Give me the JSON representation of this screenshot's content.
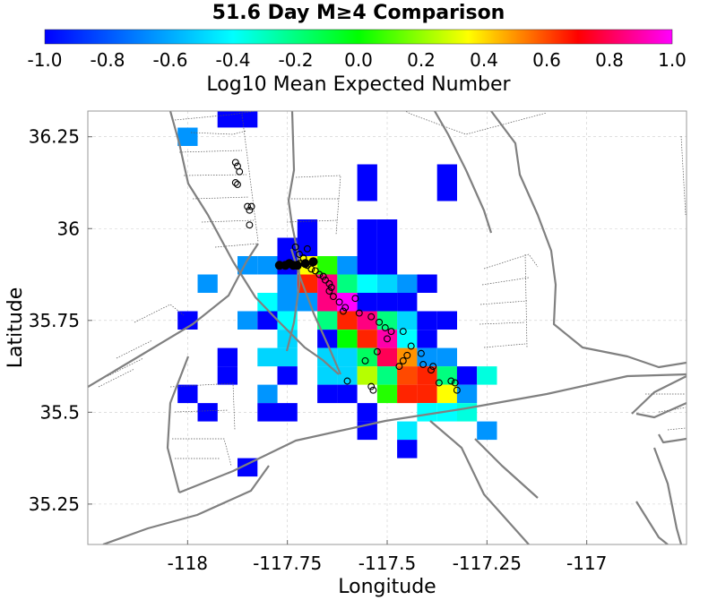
{
  "chart_data": {
    "type": "heatmap",
    "title": "51.6 Day M≥4 Comparison",
    "xlabel": "Longitude",
    "ylabel": "Latitude",
    "colorbar": {
      "label": "Log10 Mean Expected Number",
      "range": [
        -1.0,
        1.0
      ],
      "ticks": [
        "-1.0",
        "-0.8",
        "-0.6",
        "-0.4",
        "-0.2",
        "0.0",
        "0.2",
        "0.4",
        "0.6",
        "0.8",
        "1.0"
      ],
      "placement": "top"
    },
    "xlim": [
      -118.25,
      -116.75
    ],
    "ylim": [
      35.14,
      36.32
    ],
    "xticks": [
      {
        "value": -118.0,
        "label": "-118"
      },
      {
        "value": -117.75,
        "label": "-117.75"
      },
      {
        "value": -117.5,
        "label": "-117.5"
      },
      {
        "value": -117.25,
        "label": "-117.25"
      },
      {
        "value": -117.0,
        "label": "-117"
      }
    ],
    "yticks": [
      {
        "value": 35.25,
        "label": "35.25"
      },
      {
        "value": 35.5,
        "label": "35.5"
      },
      {
        "value": 35.75,
        "label": "35.75"
      },
      {
        "value": 36.0,
        "label": "36"
      },
      {
        "value": 36.25,
        "label": "36.25"
      }
    ],
    "grid": true,
    "cell_size_deg": 0.05,
    "cells": [
      {
        "lon": -117.9,
        "lat": 36.3,
        "v": -1.0
      },
      {
        "lon": -117.85,
        "lat": 36.3,
        "v": -1.0
      },
      {
        "lon": -118.0,
        "lat": 36.25,
        "v": -0.65
      },
      {
        "lon": -117.55,
        "lat": 36.15,
        "v": -1.0
      },
      {
        "lon": -117.35,
        "lat": 36.15,
        "v": -1.0
      },
      {
        "lon": -117.55,
        "lat": 36.1,
        "v": -1.0
      },
      {
        "lon": -117.35,
        "lat": 36.1,
        "v": -1.0
      },
      {
        "lon": -117.7,
        "lat": 36.0,
        "v": -1.0
      },
      {
        "lon": -117.55,
        "lat": 36.0,
        "v": -1.0
      },
      {
        "lon": -117.5,
        "lat": 36.0,
        "v": -1.0
      },
      {
        "lon": -117.75,
        "lat": 35.95,
        "v": -1.0
      },
      {
        "lon": -117.7,
        "lat": 35.95,
        "v": -1.0
      },
      {
        "lon": -117.55,
        "lat": 35.95,
        "v": -1.0
      },
      {
        "lon": -117.5,
        "lat": 35.95,
        "v": -1.0
      },
      {
        "lon": -117.85,
        "lat": 35.9,
        "v": -0.65
      },
      {
        "lon": -117.8,
        "lat": 35.9,
        "v": -0.65
      },
      {
        "lon": -117.75,
        "lat": 35.9,
        "v": -1.0
      },
      {
        "lon": -117.7,
        "lat": 35.9,
        "v": 0.35
      },
      {
        "lon": -117.65,
        "lat": 35.9,
        "v": 0.05
      },
      {
        "lon": -117.6,
        "lat": 35.9,
        "v": -0.65
      },
      {
        "lon": -117.55,
        "lat": 35.9,
        "v": -1.0
      },
      {
        "lon": -117.5,
        "lat": 35.9,
        "v": -1.0
      },
      {
        "lon": -117.95,
        "lat": 35.85,
        "v": -0.65
      },
      {
        "lon": -117.75,
        "lat": 35.85,
        "v": -0.65
      },
      {
        "lon": -117.7,
        "lat": 35.85,
        "v": 0.65
      },
      {
        "lon": -117.65,
        "lat": 35.85,
        "v": 0.85
      },
      {
        "lon": -117.6,
        "lat": 35.85,
        "v": -0.2
      },
      {
        "lon": -117.55,
        "lat": 35.85,
        "v": -0.4
      },
      {
        "lon": -117.5,
        "lat": 35.85,
        "v": -0.5
      },
      {
        "lon": -117.45,
        "lat": 35.85,
        "v": -0.65
      },
      {
        "lon": -117.4,
        "lat": 35.85,
        "v": -1.0
      },
      {
        "lon": -117.8,
        "lat": 35.8,
        "v": -0.4
      },
      {
        "lon": -117.75,
        "lat": 35.8,
        "v": -0.65
      },
      {
        "lon": -117.7,
        "lat": 35.8,
        "v": -0.65
      },
      {
        "lon": -117.65,
        "lat": 35.8,
        "v": 0.85
      },
      {
        "lon": -117.6,
        "lat": 35.8,
        "v": 1.0
      },
      {
        "lon": -117.55,
        "lat": 35.8,
        "v": -1.0
      },
      {
        "lon": -117.5,
        "lat": 35.8,
        "v": -1.0
      },
      {
        "lon": -117.45,
        "lat": 35.8,
        "v": -1.0
      },
      {
        "lon": -118.0,
        "lat": 35.75,
        "v": -1.0
      },
      {
        "lon": -117.85,
        "lat": 35.75,
        "v": -0.65
      },
      {
        "lon": -117.8,
        "lat": 35.75,
        "v": -1.0
      },
      {
        "lon": -117.75,
        "lat": 35.75,
        "v": -0.4
      },
      {
        "lon": -117.65,
        "lat": 35.75,
        "v": -0.2
      },
      {
        "lon": -117.6,
        "lat": 35.75,
        "v": 0.65
      },
      {
        "lon": -117.55,
        "lat": 35.75,
        "v": 0.85
      },
      {
        "lon": -117.5,
        "lat": 35.75,
        "v": -0.2
      },
      {
        "lon": -117.45,
        "lat": 35.75,
        "v": -0.5
      },
      {
        "lon": -117.4,
        "lat": 35.75,
        "v": -1.0
      },
      {
        "lon": -117.35,
        "lat": 35.75,
        "v": -1.0
      },
      {
        "lon": -117.75,
        "lat": 35.7,
        "v": -0.5
      },
      {
        "lon": -117.65,
        "lat": 35.7,
        "v": -1.0
      },
      {
        "lon": -117.6,
        "lat": 35.7,
        "v": 0.0
      },
      {
        "lon": -117.55,
        "lat": 35.7,
        "v": 0.65
      },
      {
        "lon": -117.5,
        "lat": 35.7,
        "v": 0.9
      },
      {
        "lon": -117.45,
        "lat": 35.7,
        "v": -0.4
      },
      {
        "lon": -117.4,
        "lat": 35.7,
        "v": -1.0
      },
      {
        "lon": -117.9,
        "lat": 35.65,
        "v": -1.0
      },
      {
        "lon": -117.8,
        "lat": 35.65,
        "v": -0.5
      },
      {
        "lon": -117.75,
        "lat": 35.65,
        "v": -0.5
      },
      {
        "lon": -117.65,
        "lat": 35.65,
        "v": -0.5
      },
      {
        "lon": -117.6,
        "lat": 35.65,
        "v": -0.5
      },
      {
        "lon": -117.55,
        "lat": 35.65,
        "v": -0.15
      },
      {
        "lon": -117.5,
        "lat": 35.65,
        "v": 0.8
      },
      {
        "lon": -117.45,
        "lat": 35.65,
        "v": 0.5
      },
      {
        "lon": -117.4,
        "lat": 35.65,
        "v": -0.65
      },
      {
        "lon": -117.35,
        "lat": 35.65,
        "v": -0.65
      },
      {
        "lon": -117.9,
        "lat": 35.6,
        "v": -1.0
      },
      {
        "lon": -117.75,
        "lat": 35.6,
        "v": -1.0
      },
      {
        "lon": -117.65,
        "lat": 35.6,
        "v": -0.5
      },
      {
        "lon": -117.6,
        "lat": 35.6,
        "v": -0.5
      },
      {
        "lon": -117.55,
        "lat": 35.6,
        "v": 0.25
      },
      {
        "lon": -117.5,
        "lat": 35.6,
        "v": -0.2
      },
      {
        "lon": -117.45,
        "lat": 35.6,
        "v": 0.6
      },
      {
        "lon": -117.4,
        "lat": 35.6,
        "v": 0.65
      },
      {
        "lon": -117.35,
        "lat": 35.6,
        "v": -0.2
      },
      {
        "lon": -117.3,
        "lat": 35.6,
        "v": -1.0
      },
      {
        "lon": -117.25,
        "lat": 35.6,
        "v": -0.35
      },
      {
        "lon": -118.0,
        "lat": 35.55,
        "v": -1.0
      },
      {
        "lon": -117.8,
        "lat": 35.55,
        "v": -0.65
      },
      {
        "lon": -117.65,
        "lat": 35.55,
        "v": -1.0
      },
      {
        "lon": -117.6,
        "lat": 35.55,
        "v": -1.0
      },
      {
        "lon": -117.5,
        "lat": 35.55,
        "v": 0.05
      },
      {
        "lon": -117.45,
        "lat": 35.55,
        "v": 0.65
      },
      {
        "lon": -117.4,
        "lat": 35.55,
        "v": 0.65
      },
      {
        "lon": -117.35,
        "lat": 35.55,
        "v": 0.35
      },
      {
        "lon": -117.3,
        "lat": 35.55,
        "v": -0.65
      },
      {
        "lon": -117.95,
        "lat": 35.5,
        "v": -1.0
      },
      {
        "lon": -117.8,
        "lat": 35.5,
        "v": -1.0
      },
      {
        "lon": -117.75,
        "lat": 35.5,
        "v": -1.0
      },
      {
        "lon": -117.55,
        "lat": 35.5,
        "v": -1.0
      },
      {
        "lon": -117.4,
        "lat": 35.5,
        "v": -0.4
      },
      {
        "lon": -117.35,
        "lat": 35.5,
        "v": -0.4
      },
      {
        "lon": -117.3,
        "lat": 35.5,
        "v": -0.35
      },
      {
        "lon": -117.55,
        "lat": 35.45,
        "v": -1.0
      },
      {
        "lon": -117.45,
        "lat": 35.45,
        "v": -0.45
      },
      {
        "lon": -117.25,
        "lat": 35.45,
        "v": -0.65
      },
      {
        "lon": -117.45,
        "lat": 35.4,
        "v": -1.0
      },
      {
        "lon": -117.85,
        "lat": 35.35,
        "v": -1.0
      }
    ],
    "events_open": [
      [
        -117.88,
        36.18
      ],
      [
        -117.875,
        36.17
      ],
      [
        -117.87,
        36.155
      ],
      [
        -117.88,
        36.125
      ],
      [
        -117.875,
        36.12
      ],
      [
        -117.85,
        36.06
      ],
      [
        -117.845,
        36.05
      ],
      [
        -117.84,
        36.06
      ],
      [
        -117.845,
        36.01
      ],
      [
        -117.73,
        35.95
      ],
      [
        -117.7,
        35.945
      ],
      [
        -117.72,
        35.93
      ],
      [
        -117.71,
        35.92
      ],
      [
        -117.72,
        35.905
      ],
      [
        -117.7,
        35.9
      ],
      [
        -117.69,
        35.89
      ],
      [
        -117.68,
        35.885
      ],
      [
        -117.67,
        35.875
      ],
      [
        -117.66,
        35.87
      ],
      [
        -117.655,
        35.86
      ],
      [
        -117.645,
        35.85
      ],
      [
        -117.64,
        35.84
      ],
      [
        -117.645,
        35.83
      ],
      [
        -117.635,
        35.815
      ],
      [
        -117.62,
        35.8
      ],
      [
        -117.605,
        35.785
      ],
      [
        -117.61,
        35.775
      ],
      [
        -117.58,
        35.81
      ],
      [
        -117.57,
        35.77
      ],
      [
        -117.54,
        35.76
      ],
      [
        -117.52,
        35.745
      ],
      [
        -117.505,
        35.73
      ],
      [
        -117.49,
        35.72
      ],
      [
        -117.46,
        35.72
      ],
      [
        -117.5,
        35.7
      ],
      [
        -117.525,
        35.665
      ],
      [
        -117.44,
        35.68
      ],
      [
        -117.45,
        35.655
      ],
      [
        -117.415,
        35.66
      ],
      [
        -117.46,
        35.64
      ],
      [
        -117.47,
        35.625
      ],
      [
        -117.41,
        35.63
      ],
      [
        -117.385,
        35.625
      ],
      [
        -117.39,
        35.615
      ],
      [
        -117.555,
        35.64
      ],
      [
        -117.54,
        35.57
      ],
      [
        -117.535,
        35.56
      ],
      [
        -117.6,
        35.585
      ],
      [
        -117.37,
        35.58
      ],
      [
        -117.34,
        35.585
      ],
      [
        -117.33,
        35.58
      ],
      [
        -117.325,
        35.56
      ]
    ],
    "events_filled": [
      [
        -117.77,
        35.9
      ],
      [
        -117.755,
        35.9
      ],
      [
        -117.745,
        35.905
      ],
      [
        -117.735,
        35.9
      ],
      [
        -117.725,
        35.9
      ],
      [
        -117.705,
        35.905
      ],
      [
        -117.685,
        35.91
      ]
    ]
  }
}
